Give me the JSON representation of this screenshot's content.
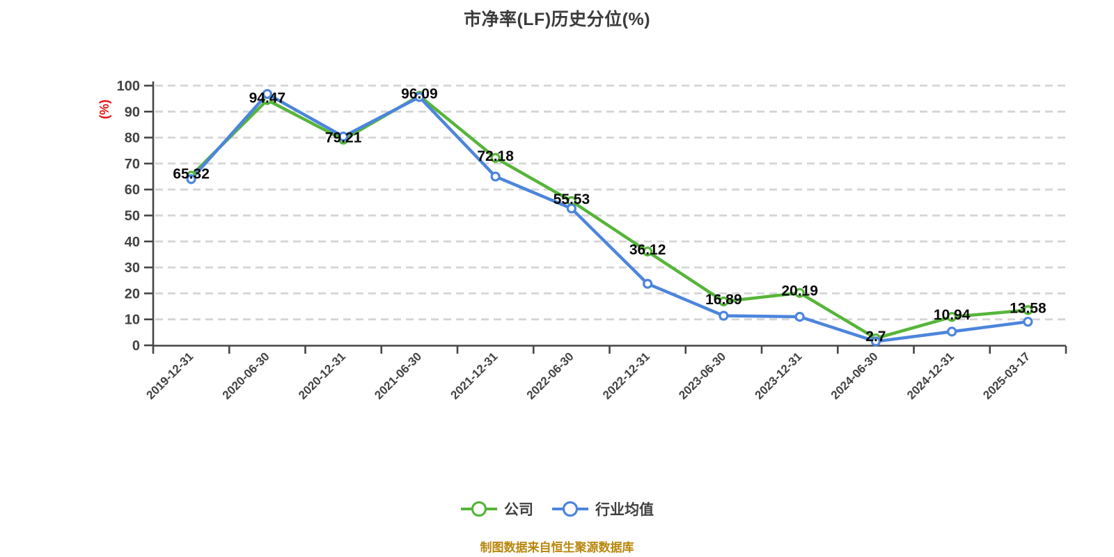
{
  "title": "市净率(LF)历史分位(%)",
  "source_note": "制图数据来自恒生聚源数据库",
  "colors": {
    "title_text": "#3b3b3b",
    "axis": "#454545",
    "axis_label": "#424242",
    "gridline": "#d5d5d5",
    "data_label": "#0a0a0a",
    "y_unit_red": "#e61414",
    "source_note_orange": "#b8860b",
    "company_green": "#56b53a",
    "industry_blue": "#4c85dc",
    "marker_fill": "#ffffff"
  },
  "chart_data": {
    "type": "line",
    "title": "市净率(LF)历史分位(%)",
    "ylabel": "(%)",
    "xlabel": "",
    "ylim": [
      0,
      100
    ],
    "ytick_step": 10,
    "yticks": [
      0,
      10,
      20,
      30,
      40,
      50,
      60,
      70,
      80,
      90,
      100
    ],
    "grid": "dashed-horizontal",
    "legend_position": "bottom-center",
    "x_label_rotation": 45,
    "categories": [
      "2019-12-31",
      "2020-06-30",
      "2020-12-31",
      "2021-06-30",
      "2021-12-31",
      "2022-06-30",
      "2022-12-31",
      "2023-06-30",
      "2023-12-31",
      "2024-06-30",
      "2024-12-31",
      "2025-03-17"
    ],
    "series": [
      {
        "key": "company",
        "name": "公司",
        "color": "#56b53a",
        "show_labels": true,
        "values": [
          65.32,
          94.47,
          79.21,
          96.09,
          72.18,
          55.53,
          36.12,
          16.89,
          20.19,
          2.7,
          10.94,
          13.58
        ]
      },
      {
        "key": "industry",
        "name": "行业均值",
        "color": "#4c85dc",
        "show_labels": false,
        "values": [
          64,
          96.8,
          80.4,
          95.6,
          65,
          52.7,
          23.7,
          11.4,
          11,
          1.5,
          5.3,
          9.1
        ]
      }
    ]
  }
}
